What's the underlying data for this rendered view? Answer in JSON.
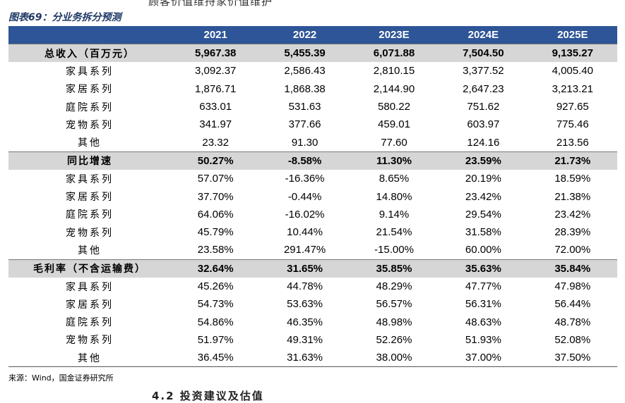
{
  "caption": "图表69：分业务拆分预测",
  "header": {
    "corner": "",
    "years": [
      "2021",
      "2022",
      "2023E",
      "2024E",
      "2025E"
    ]
  },
  "sections": [
    {
      "title": {
        "label": "总收入（百万元）",
        "values": [
          "5,967.38",
          "5,455.39",
          "6,071.88",
          "7,504.50",
          "9,135.27"
        ]
      },
      "rows": [
        {
          "label": "家具系列",
          "values": [
            "3,092.37",
            "2,586.43",
            "2,810.15",
            "3,377.52",
            "4,005.40"
          ]
        },
        {
          "label": "家居系列",
          "values": [
            "1,876.71",
            "1,868.38",
            "2,144.90",
            "2,647.23",
            "3,213.21"
          ]
        },
        {
          "label": "庭院系列",
          "values": [
            "633.01",
            "531.63",
            "580.22",
            "751.62",
            "927.65"
          ]
        },
        {
          "label": "宠物系列",
          "values": [
            "341.97",
            "377.66",
            "459.01",
            "603.97",
            "775.46"
          ]
        },
        {
          "label": "其他",
          "values": [
            "23.32",
            "91.30",
            "77.60",
            "124.16",
            "213.56"
          ]
        }
      ]
    },
    {
      "title": {
        "label": "同比增速",
        "values": [
          "50.27%",
          "-8.58%",
          "11.30%",
          "23.59%",
          "21.73%"
        ]
      },
      "rows": [
        {
          "label": "家具系列",
          "values": [
            "57.07%",
            "-16.36%",
            "8.65%",
            "20.19%",
            "18.59%"
          ]
        },
        {
          "label": "家居系列",
          "values": [
            "37.70%",
            "-0.44%",
            "14.80%",
            "23.42%",
            "21.38%"
          ]
        },
        {
          "label": "庭院系列",
          "values": [
            "64.06%",
            "-16.02%",
            "9.14%",
            "29.54%",
            "23.42%"
          ]
        },
        {
          "label": "宠物系列",
          "values": [
            "45.79%",
            "10.44%",
            "21.54%",
            "31.58%",
            "28.39%"
          ]
        },
        {
          "label": "其他",
          "values": [
            "23.58%",
            "291.47%",
            "-15.00%",
            "60.00%",
            "72.00%"
          ]
        }
      ]
    },
    {
      "title": {
        "label": "毛利率（不含运输费）",
        "values": [
          "32.64%",
          "31.65%",
          "35.85%",
          "35.63%",
          "35.84%"
        ]
      },
      "rows": [
        {
          "label": "家具系列",
          "values": [
            "45.26%",
            "44.78%",
            "48.29%",
            "47.77%",
            "47.98%"
          ]
        },
        {
          "label": "家居系列",
          "values": [
            "54.73%",
            "53.63%",
            "56.57%",
            "56.31%",
            "56.44%"
          ]
        },
        {
          "label": "庭院系列",
          "values": [
            "54.86%",
            "46.35%",
            "48.98%",
            "48.63%",
            "48.78%"
          ]
        },
        {
          "label": "宠物系列",
          "values": [
            "51.97%",
            "49.31%",
            "52.26%",
            "51.93%",
            "52.08%"
          ]
        },
        {
          "label": "其他",
          "values": [
            "36.45%",
            "31.63%",
            "38.00%",
            "37.00%",
            "37.50%"
          ]
        }
      ]
    }
  ],
  "source": "来源：Wind，国金证券研究所",
  "top_clip_text": "顾客价值维持家价值维护",
  "bottom_clip_text": "4.2 投资建议及估值",
  "colors": {
    "header_bg": "#2e5597",
    "section_bg": "#d6d6d6",
    "caption": "#1f3864"
  }
}
